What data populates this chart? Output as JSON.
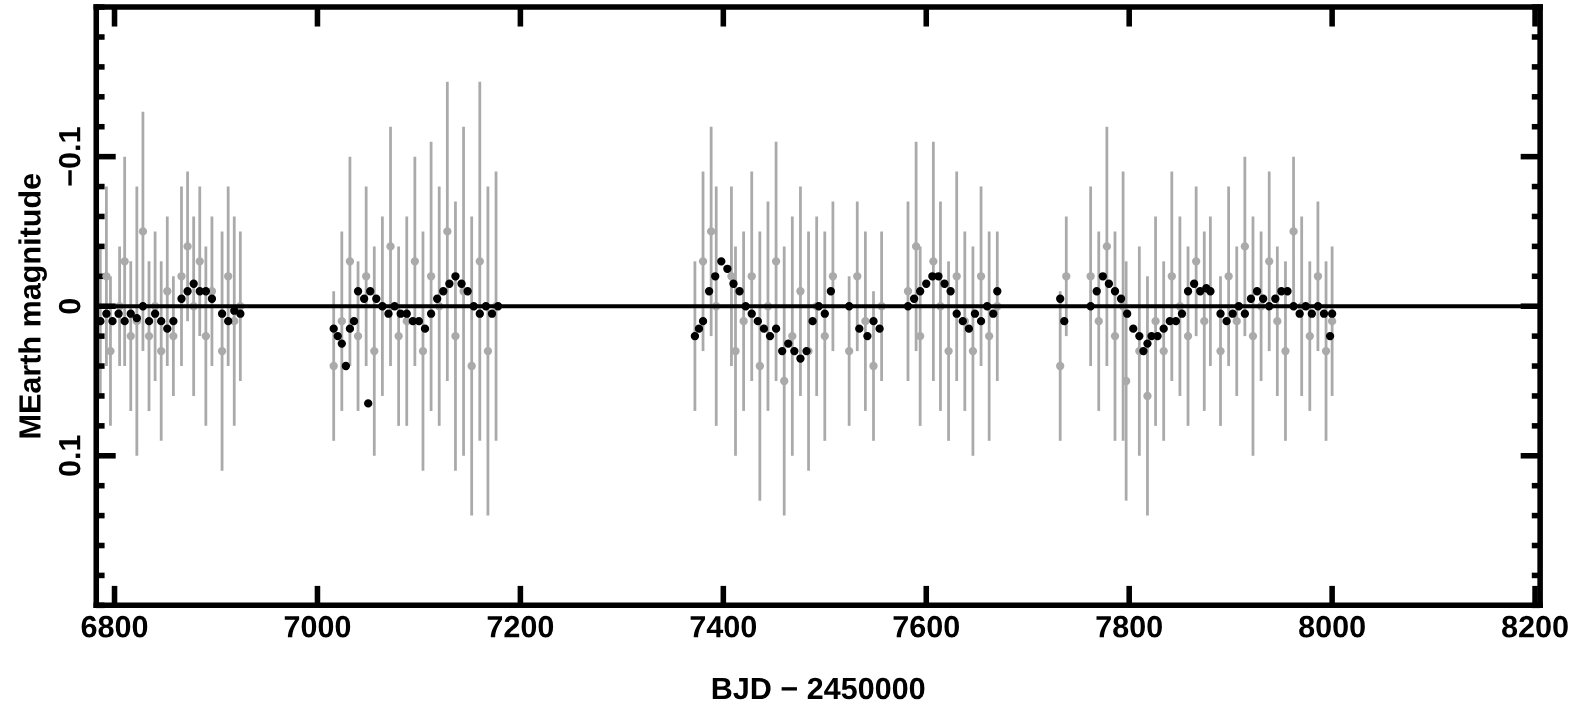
{
  "chart_data": {
    "type": "scatter",
    "xlabel": "BJD − 2450000",
    "ylabel": "MEarth magnitude",
    "xlim": [
      6782,
      8205
    ],
    "ylim": [
      0.2,
      -0.2
    ],
    "xticks": [
      6800,
      7000,
      7200,
      7400,
      7600,
      7800,
      8000,
      8200
    ],
    "yticks": [
      {
        "value": -0.1,
        "label": "−0.1"
      },
      0,
      {
        "value": 0.1,
        "label": "0.1"
      }
    ],
    "marker": "circle",
    "grid": false,
    "legend": false,
    "ref_lines": [
      {
        "axis": "y",
        "value": 0,
        "color": "#000000"
      }
    ],
    "series": [
      {
        "color": "#aaaaaa",
        "x": [
          6786,
          6792,
          6796,
          6805,
          6810,
          6816,
          6822,
          6828,
          6834,
          6840,
          6846,
          6852,
          6858,
          6866,
          6872,
          6878,
          6884,
          6890,
          6896,
          6906,
          6912,
          6918,
          6924,
          7016,
          7024,
          7032,
          7040,
          7048,
          7056,
          7064,
          7072,
          7080,
          7088,
          7096,
          7104,
          7112,
          7120,
          7128,
          7136,
          7144,
          7152,
          7160,
          7168,
          7176,
          7372,
          7380,
          7388,
          7393,
          7408,
          7412,
          7420,
          7428,
          7436,
          7444,
          7452,
          7460,
          7468,
          7476,
          7484,
          7492,
          7500,
          7508,
          7524,
          7532,
          7540,
          7548,
          7556,
          7582,
          7590,
          7594,
          7607,
          7614,
          7622,
          7630,
          7638,
          7646,
          7654,
          7662,
          7670,
          7732,
          7738,
          7762,
          7770,
          7778,
          7786,
          7794,
          7797,
          7810,
          7818,
          7826,
          7834,
          7842,
          7850,
          7858,
          7866,
          7874,
          7880,
          7890,
          7898,
          7906,
          7914,
          7922,
          7930,
          7938,
          7946,
          7954,
          7962,
          7970,
          7978,
          7986,
          7994,
          8000
        ],
        "values": [
          0.01,
          -0.02,
          0.03,
          0.0,
          -0.03,
          0.02,
          0.01,
          -0.05,
          0.02,
          0.0,
          0.03,
          -0.01,
          0.02,
          -0.02,
          -0.04,
          0.0,
          -0.03,
          0.02,
          -0.01,
          0.03,
          -0.02,
          0.01,
          0.0,
          0.04,
          0.01,
          -0.03,
          0.02,
          -0.02,
          0.03,
          0.0,
          -0.04,
          0.02,
          0.01,
          -0.03,
          0.03,
          -0.02,
          0.0,
          -0.05,
          0.02,
          -0.01,
          0.04,
          -0.03,
          0.03,
          0.0,
          0.02,
          -0.03,
          -0.05,
          0.0,
          -0.02,
          0.03,
          0.01,
          -0.02,
          0.04,
          0.0,
          -0.03,
          0.05,
          0.02,
          -0.01,
          0.03,
          0.0,
          0.02,
          -0.02,
          0.03,
          -0.02,
          0.01,
          0.04,
          0.0,
          -0.01,
          -0.04,
          0.02,
          -0.03,
          0.0,
          0.03,
          -0.02,
          0.01,
          0.03,
          -0.02,
          0.02,
          0.0,
          0.04,
          -0.02,
          -0.02,
          0.01,
          -0.04,
          0.02,
          0.0,
          0.05,
          0.03,
          0.06,
          0.01,
          0.03,
          -0.02,
          0.0,
          0.02,
          -0.03,
          0.01,
          -0.01,
          0.03,
          -0.02,
          0.01,
          -0.04,
          0.02,
          0.0,
          -0.03,
          0.01,
          0.03,
          -0.05,
          0.0,
          0.02,
          -0.02,
          0.03,
          0.01
        ],
        "errors": [
          0.05,
          0.06,
          0.05,
          0.04,
          0.07,
          0.05,
          0.09,
          0.08,
          0.05,
          0.05,
          0.06,
          0.05,
          0.04,
          0.06,
          0.05,
          0.06,
          0.05,
          0.06,
          0.05,
          0.08,
          0.06,
          0.07,
          0.05,
          0.05,
          0.06,
          0.07,
          0.05,
          0.06,
          0.07,
          0.06,
          0.08,
          0.06,
          0.07,
          0.07,
          0.08,
          0.09,
          0.08,
          0.1,
          0.09,
          0.11,
          0.1,
          0.12,
          0.11,
          0.09,
          0.05,
          0.06,
          0.07,
          0.08,
          0.06,
          0.07,
          0.06,
          0.07,
          0.09,
          0.07,
          0.08,
          0.09,
          0.08,
          0.07,
          0.08,
          0.06,
          0.07,
          0.05,
          0.05,
          0.05,
          0.06,
          0.05,
          0.05,
          0.06,
          0.07,
          0.06,
          0.08,
          0.07,
          0.06,
          0.07,
          0.06,
          0.07,
          0.06,
          0.07,
          0.05,
          0.05,
          0.04,
          0.06,
          0.06,
          0.08,
          0.07,
          0.09,
          0.08,
          0.07,
          0.08,
          0.07,
          0.06,
          0.07,
          0.06,
          0.06,
          0.05,
          0.06,
          0.05,
          0.05,
          0.06,
          0.05,
          0.06,
          0.08,
          0.05,
          0.06,
          0.05,
          0.06,
          0.05,
          0.06,
          0.05,
          0.05,
          0.06,
          0.05
        ]
      },
      {
        "color": "#000000",
        "x": [
          6786,
          6792,
          6798,
          6804,
          6810,
          6816,
          6822,
          6828,
          6834,
          6840,
          6846,
          6852,
          6858,
          6866,
          6872,
          6878,
          6884,
          6890,
          6896,
          6906,
          6912,
          6918,
          6924,
          7016,
          7020,
          7024,
          7028,
          7032,
          7036,
          7040,
          7046,
          7050,
          7052,
          7058,
          7064,
          7070,
          7076,
          7082,
          7088,
          7094,
          7100,
          7106,
          7112,
          7118,
          7124,
          7130,
          7136,
          7142,
          7148,
          7154,
          7160,
          7166,
          7172,
          7178,
          7372,
          7376,
          7380,
          7386,
          7392,
          7398,
          7404,
          7410,
          7416,
          7422,
          7428,
          7434,
          7440,
          7446,
          7452,
          7458,
          7464,
          7470,
          7476,
          7482,
          7488,
          7494,
          7500,
          7506,
          7524,
          7534,
          7542,
          7548,
          7554,
          7582,
          7588,
          7594,
          7600,
          7606,
          7612,
          7618,
          7624,
          7630,
          7636,
          7642,
          7648,
          7654,
          7660,
          7666,
          7670,
          7732,
          7736,
          7762,
          7768,
          7774,
          7780,
          7786,
          7792,
          7798,
          7804,
          7810,
          7814,
          7818,
          7822,
          7828,
          7834,
          7840,
          7846,
          7852,
          7858,
          7864,
          7870,
          7876,
          7880,
          7890,
          7896,
          7902,
          7908,
          7914,
          7920,
          7926,
          7932,
          7938,
          7944,
          7950,
          7956,
          7962,
          7968,
          7974,
          7980,
          7986,
          7992,
          7998,
          8000
        ],
        "values": [
          0.01,
          0.005,
          0.01,
          0.005,
          0.01,
          0.005,
          0.008,
          0.0,
          0.01,
          0.005,
          0.01,
          0.015,
          0.01,
          -0.005,
          -0.01,
          -0.015,
          -0.01,
          -0.01,
          -0.005,
          0.005,
          0.01,
          0.003,
          0.005,
          0.015,
          0.02,
          0.025,
          0.04,
          0.015,
          0.01,
          -0.01,
          -0.005,
          0.065,
          -0.01,
          -0.005,
          0.0,
          0.005,
          0.0,
          0.005,
          0.005,
          0.01,
          0.01,
          0.015,
          0.005,
          -0.005,
          -0.01,
          -0.015,
          -0.02,
          -0.015,
          -0.01,
          0.0,
          0.005,
          0.0,
          0.005,
          0.0,
          0.02,
          0.015,
          0.01,
          -0.01,
          -0.02,
          -0.03,
          -0.025,
          -0.015,
          -0.01,
          0.0,
          0.005,
          0.01,
          0.015,
          0.02,
          0.015,
          0.03,
          0.025,
          0.03,
          0.035,
          0.03,
          0.01,
          0.0,
          0.005,
          -0.01,
          0.0,
          0.015,
          0.02,
          0.01,
          0.015,
          0.0,
          -0.005,
          -0.01,
          -0.015,
          -0.02,
          -0.02,
          -0.015,
          -0.01,
          0.005,
          0.01,
          0.015,
          0.005,
          0.01,
          0.0,
          0.005,
          -0.01,
          -0.005,
          0.01,
          0.0,
          -0.01,
          -0.02,
          -0.015,
          -0.01,
          -0.005,
          0.005,
          0.015,
          0.02,
          0.03,
          0.025,
          0.02,
          0.02,
          0.015,
          0.01,
          0.01,
          0.005,
          -0.01,
          -0.015,
          -0.01,
          -0.012,
          -0.01,
          0.005,
          0.01,
          0.005,
          0.0,
          0.005,
          -0.005,
          -0.01,
          -0.005,
          0.0,
          -0.005,
          -0.01,
          -0.01,
          0.0,
          0.005,
          0.0,
          0.005,
          0.0,
          0.005,
          0.02,
          0.005
        ]
      }
    ]
  }
}
